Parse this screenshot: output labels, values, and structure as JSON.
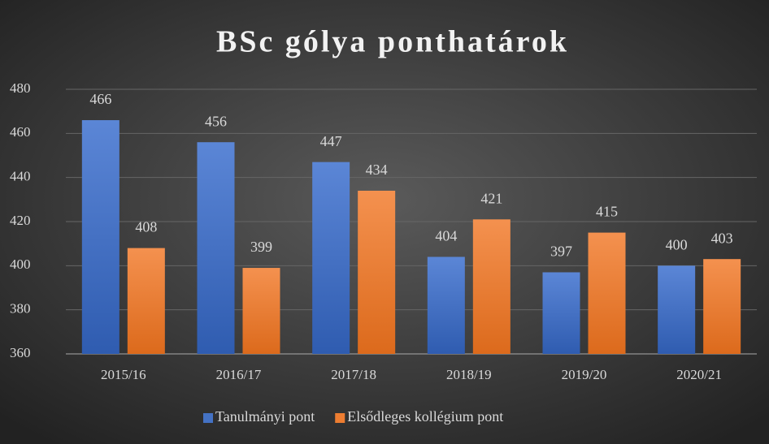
{
  "chart_data": {
    "type": "bar",
    "title": "BSc gólya ponthatárok",
    "categories": [
      "2015/16",
      "2016/17",
      "2017/18",
      "2018/19",
      "2019/20",
      "2020/21"
    ],
    "series": [
      {
        "name": "Tanulmányi pont",
        "color": "#4472c4",
        "values": [
          466,
          456,
          447,
          404,
          397,
          400
        ]
      },
      {
        "name": "Elsődleges kollégium pont",
        "color": "#ed7d31",
        "values": [
          408,
          399,
          434,
          421,
          415,
          403
        ]
      }
    ],
    "ylim": [
      360,
      480
    ],
    "yticks": [
      360,
      380,
      400,
      420,
      440,
      460,
      480
    ],
    "grid": true,
    "legend": "bottom"
  }
}
